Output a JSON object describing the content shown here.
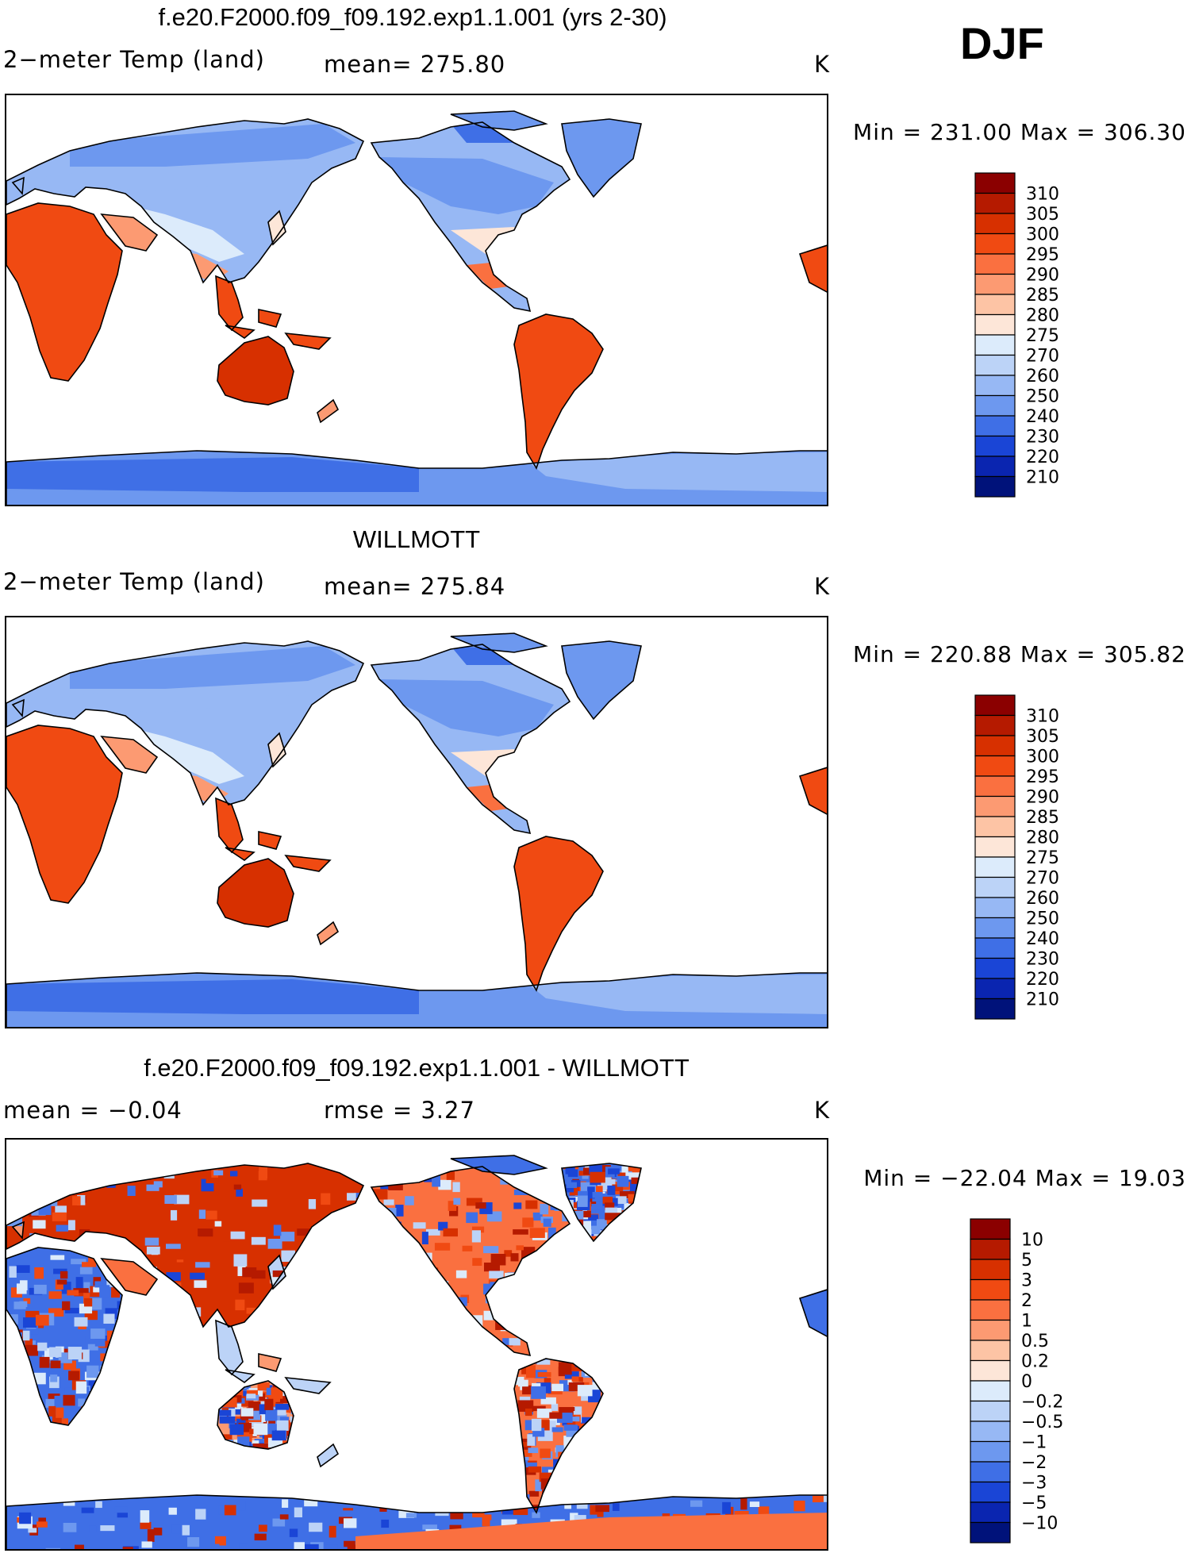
{
  "season": "DJF",
  "panels": [
    {
      "title": "f.e20.F2000.f09_f09.192.exp1.1.001 (yrs 2-30)",
      "left_label": "2−meter Temp (land)",
      "center_label": "mean= 275.80",
      "units": "K",
      "minmax": "Min = 231.00 Max = 306.30",
      "colorbar": {
        "labels": [
          "310",
          "305",
          "300",
          "295",
          "290",
          "285",
          "280",
          "275",
          "270",
          "260",
          "250",
          "240",
          "230",
          "220",
          "210"
        ],
        "colors": [
          "#8b0000",
          "#b51a00",
          "#d73000",
          "#f04a12",
          "#fa7040",
          "#fc9a72",
          "#fdc4a5",
          "#fde6d8",
          "#dcebfb",
          "#bcd3f7",
          "#97b8f4",
          "#6d98ef",
          "#3f6fe6",
          "#1a45d6",
          "#0a25b0",
          "#00127a"
        ]
      },
      "map_kind": "temp"
    },
    {
      "title": "WILLMOTT",
      "left_label": "2−meter Temp (land)",
      "center_label": "mean= 275.84",
      "units": "K",
      "minmax": "Min = 220.88 Max = 305.82",
      "colorbar": {
        "labels": [
          "310",
          "305",
          "300",
          "295",
          "290",
          "285",
          "280",
          "275",
          "270",
          "260",
          "250",
          "240",
          "230",
          "220",
          "210"
        ],
        "colors": [
          "#8b0000",
          "#b51a00",
          "#d73000",
          "#f04a12",
          "#fa7040",
          "#fc9a72",
          "#fdc4a5",
          "#fde6d8",
          "#dcebfb",
          "#bcd3f7",
          "#97b8f4",
          "#6d98ef",
          "#3f6fe6",
          "#1a45d6",
          "#0a25b0",
          "#00127a"
        ]
      },
      "map_kind": "temp"
    },
    {
      "title": "f.e20.F2000.f09_f09.192.exp1.1.001 - WILLMOTT",
      "left_label": "mean =   −0.04",
      "center_label": "rmse =     3.27",
      "units": "K",
      "minmax": "Min = −22.04 Max =   19.03",
      "colorbar": {
        "labels": [
          "10",
          "5",
          "3",
          "2",
          "1",
          "0.5",
          "0.2",
          "0",
          "−0.2",
          "−0.5",
          "−1",
          "−2",
          "−3",
          "−5",
          "−10"
        ],
        "colors": [
          "#8b0000",
          "#b51a00",
          "#d73000",
          "#f04a12",
          "#fa7040",
          "#fc9a72",
          "#fdc4a5",
          "#fde6d8",
          "#dcebfb",
          "#bcd3f7",
          "#97b8f4",
          "#6d98ef",
          "#3f6fe6",
          "#1a45d6",
          "#0a25b0",
          "#00127a"
        ]
      },
      "map_kind": "diff"
    }
  ]
}
